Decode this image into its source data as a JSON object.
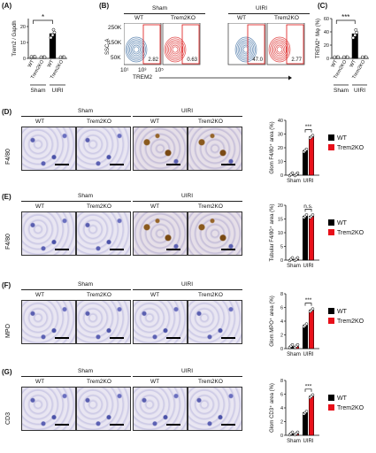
{
  "panels": {
    "A": {
      "label": "(A)",
      "ylabel": "Trem2 / Gapdh",
      "yticks": [
        "0",
        "10",
        "20"
      ],
      "groups": [
        "WT",
        "Trem2KO",
        "WT",
        "Trem2KO"
      ],
      "conditions": [
        "Sham",
        "UIRI"
      ],
      "sig": "*"
    },
    "B": {
      "label": "(B)",
      "conditions": [
        "Sham",
        "UIRI"
      ],
      "groups": [
        "WT",
        "Trem2KO",
        "WT",
        "Trem2KO"
      ],
      "yaxis": "SSC-A",
      "xaxis": "TREM2",
      "yticks": [
        "250K",
        "150K",
        "50K"
      ],
      "xticks": [
        "10¹",
        "10³",
        "10⁵"
      ],
      "percents": [
        "2.82",
        "0.63",
        "47.0",
        "2.77"
      ]
    },
    "C": {
      "label": "(C)",
      "ylabel": "TREM2⁺ Mφ (%)",
      "yticks": [
        "0",
        "20",
        "40",
        "60"
      ],
      "groups": [
        "WT",
        "Trem2KO",
        "WT",
        "Trem2KO"
      ],
      "conditions": [
        "Sham",
        "UIRI"
      ],
      "sig": "***"
    },
    "D": {
      "label": "(D)",
      "stain": "F4/80",
      "ylabel": "Glom F4/80⁺ area (%)",
      "yticks": [
        "0",
        "10",
        "20",
        "30",
        "40"
      ],
      "sig": "***"
    },
    "E": {
      "label": "(E)",
      "stain": "F4/80",
      "ylabel": "Tubular F4/80⁺ area (%)",
      "yticks": [
        "0",
        "5",
        "10",
        "15",
        "20"
      ],
      "sig": "n.s."
    },
    "F": {
      "label": "(F)",
      "stain": "MPO",
      "ylabel": "Glom MPO⁺ area (%)",
      "yticks": [
        "0",
        "2",
        "4",
        "6",
        "8"
      ],
      "sig": "***"
    },
    "G": {
      "label": "(G)",
      "stain": "CD3",
      "ylabel": "Glom CD3⁺ area (%)",
      "yticks": [
        "0",
        "2",
        "4",
        "6",
        "8"
      ],
      "sig": "***"
    }
  },
  "common": {
    "sham": "Sham",
    "uiri": "UIRI",
    "wt": "WT",
    "ko": "Trem2KO",
    "legend": [
      "WT",
      "Trem2KO"
    ]
  },
  "colors": {
    "wt": "#000000",
    "ko": "#e8101a",
    "gate": "#d11111"
  },
  "chart_data": [
    {
      "panel": "A",
      "type": "bar",
      "categories": [
        "Sham WT",
        "Sham Trem2KO",
        "UIRI WT",
        "UIRI Trem2KO"
      ],
      "values": [
        1,
        0.5,
        15.5,
        0.3
      ],
      "ylim": [
        0,
        25
      ],
      "ylabel": "Trem2 / Gapdh"
    },
    {
      "panel": "C",
      "type": "bar",
      "categories": [
        "Sham WT",
        "Sham Trem2KO",
        "UIRI WT",
        "UIRI Trem2KO"
      ],
      "values": [
        1.5,
        0.5,
        37,
        1.5
      ],
      "ylim": [
        0,
        60
      ],
      "ylabel": "TREM2⁺ Mφ (%)"
    },
    {
      "panel": "D",
      "type": "bar",
      "categories": [
        "Sham",
        "UIRI"
      ],
      "series": [
        {
          "name": "WT",
          "values": [
            0.3,
            18
          ]
        },
        {
          "name": "Trem2KO",
          "values": [
            0.3,
            28
          ]
        }
      ],
      "ylim": [
        0,
        40
      ],
      "ylabel": "Glom F4/80⁺ area (%)"
    },
    {
      "panel": "E",
      "type": "bar",
      "categories": [
        "Sham",
        "UIRI"
      ],
      "series": [
        {
          "name": "WT",
          "values": [
            0.2,
            16
          ]
        },
        {
          "name": "Trem2KO",
          "values": [
            0.2,
            16
          ]
        }
      ],
      "ylim": [
        0,
        20
      ],
      "ylabel": "Tubular F4/80⁺ area (%)"
    },
    {
      "panel": "F",
      "type": "bar",
      "categories": [
        "Sham",
        "UIRI"
      ],
      "series": [
        {
          "name": "WT",
          "values": [
            0.3,
            3.4
          ]
        },
        {
          "name": "Trem2KO",
          "values": [
            0.3,
            5.6
          ]
        }
      ],
      "ylim": [
        0,
        8
      ],
      "ylabel": "Glom MPO⁺ area (%)"
    },
    {
      "panel": "G",
      "type": "bar",
      "categories": [
        "Sham",
        "UIRI"
      ],
      "series": [
        {
          "name": "WT",
          "values": [
            0.2,
            3.3
          ]
        },
        {
          "name": "Trem2KO",
          "values": [
            0.2,
            5.7
          ]
        }
      ],
      "ylim": [
        0,
        8
      ],
      "ylabel": "Glom CD3⁺ area (%)"
    }
  ]
}
